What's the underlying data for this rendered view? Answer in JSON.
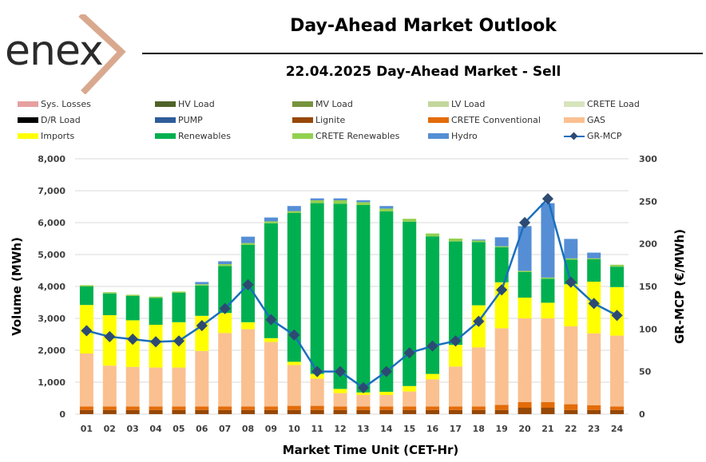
{
  "logo": {
    "text": "enex",
    "accent_color": "#d9a98f"
  },
  "header": {
    "title": "Day-Ahead Market Outlook",
    "subtitle": "22.04.2025  Day-Ahead Market - Sell"
  },
  "legend": [
    {
      "label": "Sys. Losses",
      "color": "#e6a0a0",
      "kind": "bar"
    },
    {
      "label": "HV Load",
      "color": "#4f6228",
      "kind": "bar"
    },
    {
      "label": "MV Load",
      "color": "#77933c",
      "kind": "bar"
    },
    {
      "label": "LV Load",
      "color": "#c3d69b",
      "kind": "bar"
    },
    {
      "label": "CRETE Load",
      "color": "#d7e4bd",
      "kind": "bar"
    },
    {
      "label": "D/R Load",
      "color": "#000000",
      "kind": "bar"
    },
    {
      "label": "PUMP",
      "color": "#2e5c9a",
      "kind": "bar"
    },
    {
      "label": "Lignite",
      "color": "#974806",
      "kind": "bar"
    },
    {
      "label": "CRETE Conventional",
      "color": "#e36c09",
      "kind": "bar"
    },
    {
      "label": "GAS",
      "color": "#fac090",
      "kind": "bar"
    },
    {
      "label": "Imports",
      "color": "#ffff00",
      "kind": "bar"
    },
    {
      "label": "Renewables",
      "color": "#00b050",
      "kind": "bar"
    },
    {
      "label": "CRETE Renewables",
      "color": "#92d050",
      "kind": "bar"
    },
    {
      "label": "Hydro",
      "color": "#558ed5",
      "kind": "bar"
    },
    {
      "label": "GR-MCP",
      "color": "#1a6fbd",
      "kind": "line"
    }
  ],
  "chart_data": {
    "type": "bar",
    "stacked": true,
    "xlabel": "Market Time Unit (CET-Hr)",
    "ylabel": "Volume (MWh)",
    "y2label": "GR-MCP (€/MWh)",
    "ylim": [
      0,
      8000
    ],
    "y2lim": [
      0,
      300
    ],
    "yticks": [
      "0",
      "1,000",
      "2,000",
      "3,000",
      "4,000",
      "5,000",
      "6,000",
      "7,000",
      "8,000"
    ],
    "y2ticks": [
      "0",
      "50",
      "100",
      "150",
      "200",
      "250",
      "300"
    ],
    "grid": true,
    "legend_position": "top",
    "categories": [
      "01",
      "02",
      "03",
      "04",
      "05",
      "06",
      "07",
      "08",
      "09",
      "10",
      "11",
      "12",
      "13",
      "14",
      "15",
      "16",
      "17",
      "18",
      "19",
      "20",
      "21",
      "22",
      "23",
      "24"
    ],
    "series": [
      {
        "name": "Lignite",
        "color": "#974806",
        "values": [
          130,
          130,
          130,
          130,
          130,
          130,
          130,
          130,
          130,
          130,
          130,
          130,
          130,
          130,
          130,
          130,
          130,
          130,
          130,
          200,
          200,
          130,
          130,
          130
        ]
      },
      {
        "name": "CRETE Conventional",
        "color": "#e36c09",
        "values": [
          110,
          110,
          110,
          110,
          110,
          110,
          110,
          110,
          110,
          130,
          130,
          110,
          110,
          110,
          110,
          110,
          110,
          110,
          160,
          180,
          180,
          180,
          150,
          110
        ]
      },
      {
        "name": "GAS",
        "color": "#fac090",
        "values": [
          1660,
          1280,
          1240,
          1220,
          1220,
          1740,
          2300,
          2420,
          2020,
          1280,
          850,
          420,
          360,
          360,
          470,
          850,
          1250,
          1850,
          2400,
          2620,
          2620,
          2440,
          2250,
          2220
        ]
      },
      {
        "name": "Imports",
        "color": "#ffff00",
        "values": [
          1520,
          1580,
          1460,
          1340,
          1420,
          1100,
          630,
          220,
          120,
          100,
          150,
          130,
          80,
          100,
          170,
          170,
          680,
          1320,
          1440,
          650,
          490,
          1320,
          1620,
          1520
        ]
      },
      {
        "name": "Renewables",
        "color": "#00b050",
        "values": [
          580,
          680,
          760,
          840,
          920,
          950,
          1470,
          2420,
          3600,
          4660,
          5350,
          5800,
          5870,
          5650,
          5150,
          4310,
          3240,
          1980,
          1100,
          800,
          750,
          770,
          700,
          640
        ]
      },
      {
        "name": "CRETE Renewables",
        "color": "#92d050",
        "values": [
          40,
          40,
          40,
          40,
          40,
          40,
          60,
          60,
          60,
          60,
          90,
          110,
          90,
          90,
          90,
          90,
          90,
          50,
          30,
          40,
          40,
          40,
          30,
          60
        ]
      },
      {
        "name": "Hydro",
        "color": "#558ed5",
        "values": [
          0,
          0,
          0,
          0,
          0,
          70,
          90,
          200,
          120,
          160,
          60,
          60,
          60,
          80,
          0,
          0,
          0,
          30,
          280,
          1400,
          2330,
          610,
          180,
          0
        ]
      }
    ],
    "line": {
      "name": "GR-MCP",
      "color": "#1a6fbd",
      "marker_color": "#2d4a73",
      "axis": "right",
      "values": [
        98,
        91,
        88,
        85,
        86,
        104,
        124,
        152,
        111,
        93,
        50,
        50,
        31,
        50,
        72,
        80,
        86,
        109,
        146,
        225,
        253,
        155,
        130,
        116
      ]
    }
  }
}
